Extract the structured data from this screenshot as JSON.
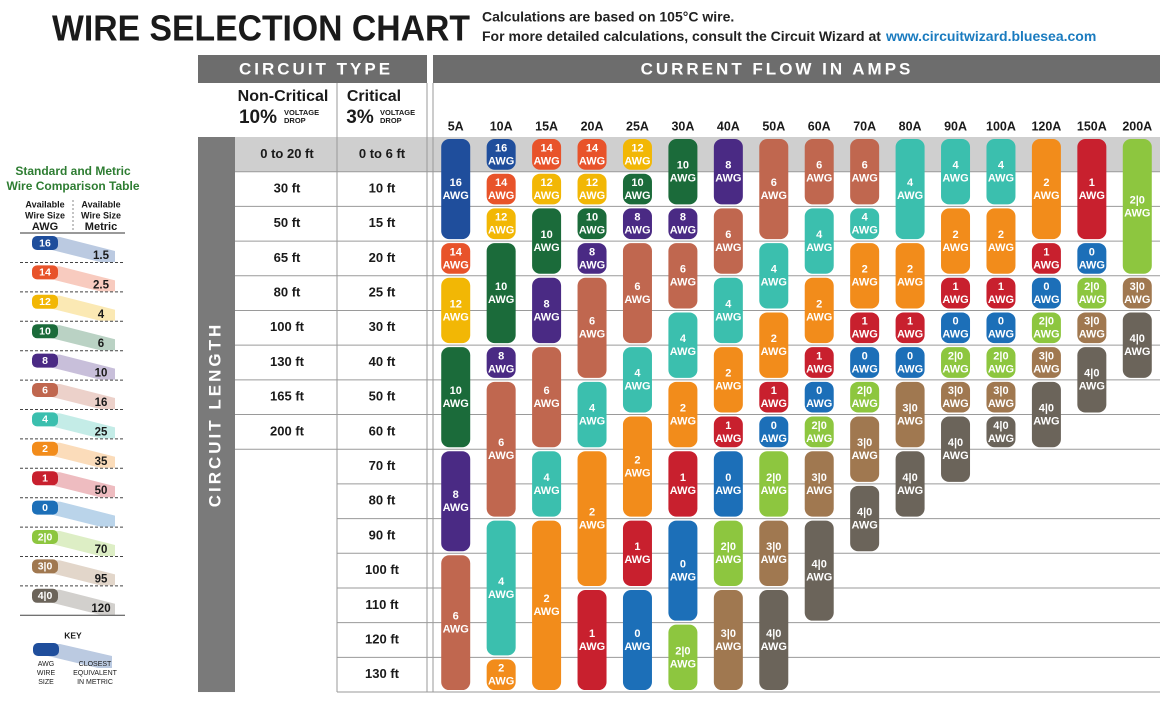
{
  "header": {
    "title": "WIRE SELECTION CHART",
    "note_1": "Calculations are based on 105°C wire.",
    "note_2": "For more detailed calculations, consult the Circuit Wizard at",
    "link": "www.circuitwizard.bluesea.com"
  },
  "table": {
    "circuit_type": "CIRCUIT TYPE",
    "current_flow": "CURRENT FLOW IN AMPS",
    "circuit_length": "CIRCUIT LENGTH",
    "non_critical": {
      "name": "Non-Critical",
      "percent": "10%",
      "drop": [
        "VOLTAGE",
        "DROP"
      ]
    },
    "critical": {
      "name": "Critical",
      "percent": "3%",
      "drop": [
        "VOLTAGE",
        "DROP"
      ]
    },
    "awg": "AWG",
    "amps": [
      "5A",
      "10A",
      "15A",
      "20A",
      "25A",
      "30A",
      "40A",
      "50A",
      "60A",
      "70A",
      "80A",
      "90A",
      "100A",
      "120A",
      "150A",
      "200A"
    ],
    "non_critical_lengths": [
      "0 to 20 ft",
      "30 ft",
      "50 ft",
      "65 ft",
      "80 ft",
      "100 ft",
      "130 ft",
      "165 ft",
      "200 ft",
      null,
      null,
      null,
      null,
      null,
      null,
      null
    ],
    "critical_lengths": [
      "0 to 6 ft",
      "10 ft",
      "15 ft",
      "20 ft",
      "25 ft",
      "30 ft",
      "40 ft",
      "50 ft",
      "60 ft",
      "70 ft",
      "80 ft",
      "90 ft",
      "100 ft",
      "110 ft",
      "120 ft",
      "130 ft"
    ],
    "columns": [
      [
        "16",
        "16",
        "16",
        "14",
        "12",
        "12",
        "10",
        "10",
        "10",
        "8",
        "8",
        "8",
        "6",
        "6",
        "6",
        "6"
      ],
      [
        "16",
        "14",
        "12",
        "10",
        "10",
        "10",
        "8",
        "6",
        "6",
        "6",
        "6",
        "4",
        "4",
        "4",
        "4",
        "2"
      ],
      [
        "14",
        "12",
        "10",
        "10",
        "8",
        "8",
        "6",
        "6",
        "6",
        "4",
        "4",
        "2",
        "2",
        "2",
        "2",
        "2"
      ],
      [
        "14",
        "12",
        "10",
        "8",
        "6",
        "6",
        "6",
        "4",
        "4",
        "2",
        "2",
        "2",
        "2",
        "1",
        "1",
        "1"
      ],
      [
        "12",
        "10",
        "8",
        "6",
        "6",
        "6",
        "4",
        "4",
        "2",
        "2",
        "2",
        "1",
        "1",
        "0",
        "0",
        "0"
      ],
      [
        "10",
        "10",
        "8",
        "6",
        "6",
        "4",
        "4",
        "2",
        "2",
        "1",
        "1",
        "0",
        "0",
        "0",
        "2|0",
        "2|0"
      ],
      [
        "8",
        "8",
        "6",
        "6",
        "4",
        "4",
        "2",
        "2",
        "1",
        "0",
        "0",
        "2|0",
        "2|0",
        "3|0",
        "3|0",
        "3|0"
      ],
      [
        "6",
        "6",
        "6",
        "4",
        "4",
        "2",
        "2",
        "1",
        "0",
        "2|0",
        "2|0",
        "3|0",
        "3|0",
        "4|0",
        "4|0",
        "4|0"
      ],
      [
        "6",
        "6",
        "4",
        "4",
        "2",
        "2",
        "1",
        "0",
        "2|0",
        "3|0",
        "3|0",
        "4|0",
        "4|0",
        "4|0",
        null,
        null
      ],
      [
        "6",
        "6",
        "4",
        "2",
        "2",
        "1",
        "0",
        "2|0",
        "3|0",
        "3|0",
        "4|0",
        "4|0",
        null,
        null,
        null,
        null
      ],
      [
        "4",
        "4",
        "4",
        "2",
        "2",
        "1",
        "0",
        "3|0",
        "3|0",
        "4|0",
        "4|0",
        null,
        null,
        null,
        null,
        null
      ],
      [
        "4",
        "4",
        "2",
        "2",
        "1",
        "0",
        "2|0",
        "3|0",
        "4|0",
        "4|0",
        null,
        null,
        null,
        null,
        null,
        null
      ],
      [
        "4",
        "4",
        "2",
        "2",
        "1",
        "0",
        "2|0",
        "3|0",
        "4|0",
        null,
        null,
        null,
        null,
        null,
        null,
        null
      ],
      [
        "2",
        "2",
        "2",
        "1",
        "0",
        "2|0",
        "3|0",
        "4|0",
        "4|0",
        null,
        null,
        null,
        null,
        null,
        null,
        null
      ],
      [
        "1",
        "1",
        "1",
        "0",
        "2|0",
        "3|0",
        "4|0",
        "4|0",
        null,
        null,
        null,
        null,
        null,
        null,
        null,
        null
      ],
      [
        "2|0",
        "2|0",
        "2|0",
        "2|0",
        "3|0",
        "4|0",
        "4|0",
        null,
        null,
        null,
        null,
        null,
        null,
        null,
        null,
        null
      ]
    ],
    "gauge_colors": {
      "16": "#1f4e9c",
      "14": "#e8532a",
      "12": "#f2b705",
      "10": "#1b6b3a",
      "8": "#4a2a84",
      "6": "#c0674f",
      "4": "#3bbfae",
      "2": "#f28c1b",
      "1": "#c8202e",
      "0": "#1c6fb8",
      "2|0": "#8dc63f",
      "3|0": "#a07850",
      "4|0": "#6b645a"
    }
  },
  "comparison": {
    "title": [
      "Standard and Metric",
      "Wire Comparison Table"
    ],
    "awg_header": [
      "Available",
      "Wire Size",
      "AWG"
    ],
    "metric_header": [
      "Available",
      "Wire Size",
      "Metric"
    ],
    "rows": [
      {
        "awg": "16",
        "metric": 1.5
      },
      {
        "awg": "14",
        "metric": 2.5
      },
      {
        "awg": "12",
        "metric": 4
      },
      {
        "awg": "10",
        "metric": 6
      },
      {
        "awg": "8",
        "metric": 10
      },
      {
        "awg": "6",
        "metric": 16
      },
      {
        "awg": "4",
        "metric": 25
      },
      {
        "awg": "2",
        "metric": 35
      },
      {
        "awg": "1",
        "metric": 50
      },
      {
        "awg": "0",
        "metric": null
      },
      {
        "awg": "2|0",
        "metric": 70
      },
      {
        "awg": "3|0",
        "metric": 95
      },
      {
        "awg": "4|0",
        "metric": 120
      }
    ]
  },
  "key": {
    "title": "KEY",
    "awg": [
      "AWG",
      "WIRE",
      "SIZE"
    ],
    "metric": [
      "CLOSEST",
      "EQUIVALENT",
      "IN METRIC"
    ]
  }
}
